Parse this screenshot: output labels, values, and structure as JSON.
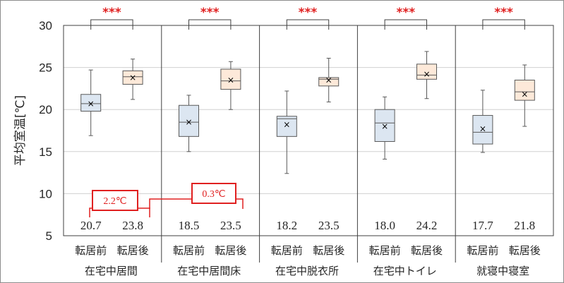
{
  "chart_data": {
    "type": "box",
    "ylabel": "平均室温[℃]",
    "ylim": [
      5,
      30
    ],
    "yticks": [
      5,
      10,
      15,
      20,
      25,
      30
    ],
    "grid": true,
    "groups": [
      {
        "name": "在宅中居間",
        "significance": "***",
        "boxes": [
          {
            "label": "転居前",
            "min": 16.9,
            "q1": 19.8,
            "median": 20.7,
            "q3": 21.8,
            "max": 24.7,
            "mean": 20.7,
            "mean_label": "20.7"
          },
          {
            "label": "転居後",
            "min": 21.2,
            "q1": 23.0,
            "median": 23.9,
            "q3": 24.6,
            "max": 26.0,
            "mean": 23.8,
            "mean_label": "23.8"
          }
        ]
      },
      {
        "name": "在宅中居間床",
        "significance": "***",
        "boxes": [
          {
            "label": "転居前",
            "min": 15.0,
            "q1": 16.8,
            "median": 18.5,
            "q3": 20.5,
            "max": 21.7,
            "mean": 18.5,
            "mean_label": "18.5"
          },
          {
            "label": "転居後",
            "min": 20.0,
            "q1": 22.4,
            "median": 23.4,
            "q3": 24.8,
            "max": 25.7,
            "mean": 23.5,
            "mean_label": "23.5"
          }
        ]
      },
      {
        "name": "在宅中脱衣所",
        "significance": "***",
        "boxes": [
          {
            "label": "転居前",
            "min": 12.4,
            "q1": 16.8,
            "median": 18.9,
            "q3": 19.2,
            "max": 22.2,
            "mean": 18.2,
            "mean_label": "18.2"
          },
          {
            "label": "転居後",
            "min": 20.9,
            "q1": 22.8,
            "median": 23.6,
            "q3": 23.8,
            "max": 26.1,
            "mean": 23.5,
            "mean_label": "23.5"
          }
        ]
      },
      {
        "name": "在宅中トイレ",
        "significance": "***",
        "boxes": [
          {
            "label": "転居前",
            "min": 14.1,
            "q1": 16.2,
            "median": 18.4,
            "q3": 20.0,
            "max": 21.5,
            "mean": 18.0,
            "mean_label": "18.0"
          },
          {
            "label": "転居後",
            "min": 21.3,
            "q1": 23.6,
            "median": 24.1,
            "q3": 25.4,
            "max": 26.9,
            "mean": 24.2,
            "mean_label": "24.2"
          }
        ]
      },
      {
        "name": "就寝中寝室",
        "significance": "***",
        "boxes": [
          {
            "label": "転居前",
            "min": 14.9,
            "q1": 15.9,
            "median": 17.3,
            "q3": 19.3,
            "max": 22.3,
            "mean": 17.7,
            "mean_label": "17.7"
          },
          {
            "label": "転居後",
            "min": 18.0,
            "q1": 21.1,
            "median": 22.1,
            "q3": 23.5,
            "max": 25.3,
            "mean": 21.8,
            "mean_label": "21.8"
          }
        ]
      }
    ],
    "annotations": [
      {
        "text": "2.2℃",
        "between_group": 0
      },
      {
        "text": "0.3℃",
        "between_group": 1
      }
    ]
  },
  "colors": {
    "before_fill": "#dce6f1",
    "after_fill": "#fde9d9",
    "box_stroke": "#595959",
    "grid": "#d0d0d0",
    "significance": "#e02020",
    "annotation": "#e02020",
    "text": "#262626"
  }
}
